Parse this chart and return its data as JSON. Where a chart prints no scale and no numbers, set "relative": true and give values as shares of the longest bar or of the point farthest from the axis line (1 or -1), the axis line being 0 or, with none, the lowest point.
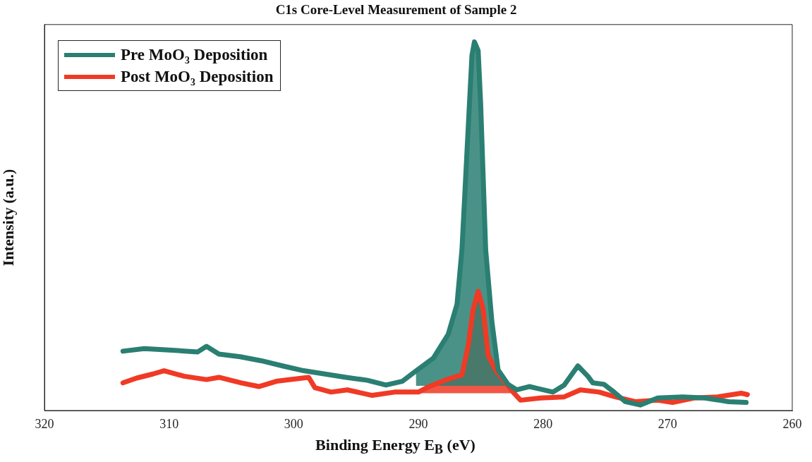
{
  "chart_data": {
    "type": "line",
    "title": "C1s Core-Level Measurement of Sample 2",
    "xlabel": "Binding Energy E$_{B}$ (eV)",
    "ylabel": "Intensity (a.u.)",
    "relative": true,
    "xlim": [
      320,
      260
    ],
    "xticks": [
      320,
      310,
      300,
      290,
      280,
      270,
      260
    ],
    "grid": false,
    "legend": "top left",
    "marker": "none",
    "line_style": "solid",
    "series": [
      {
        "name": "Pre MoO₃ Deposition",
        "color": "#2a7f72",
        "x": [
          313.7,
          312.0,
          310.0,
          307.7,
          307.0,
          306.0,
          304.3,
          302.6,
          300.9,
          299.2,
          297.5,
          295.8,
          294.1,
          292.6,
          291.3,
          290.2,
          288.8,
          287.6,
          286.9,
          286.5,
          286.1,
          285.7,
          285.5,
          285.2,
          285.0,
          284.6,
          284.1,
          283.6,
          282.8,
          282.1,
          281.1,
          279.2,
          278.3,
          277.2,
          276.4,
          276.0,
          275.1,
          274.3,
          273.4,
          272.2,
          270.8,
          268.8,
          267.0,
          265.1,
          263.7
        ],
        "values": [
          0.161,
          0.168,
          0.164,
          0.159,
          0.174,
          0.153,
          0.146,
          0.135,
          0.121,
          0.108,
          0.099,
          0.09,
          0.082,
          0.069,
          0.079,
          0.107,
          0.142,
          0.207,
          0.288,
          0.437,
          0.701,
          0.963,
          1,
          0.976,
          0.832,
          0.437,
          0.241,
          0.11,
          0.071,
          0.056,
          0.065,
          0.05,
          0.069,
          0.121,
          0.093,
          0.075,
          0.071,
          0.05,
          0.024,
          0.015,
          0.034,
          0.037,
          0.034,
          0.024,
          0.022
        ],
        "lower": [
          null,
          null,
          null,
          null,
          null,
          null,
          null,
          null,
          null,
          null,
          null,
          null,
          null,
          null,
          null,
          0.067,
          0.067,
          0.067,
          0.067,
          0.067,
          0.067,
          0.067,
          0.067,
          0.067,
          0.067,
          0.067,
          0.067,
          0.067,
          0.067,
          null,
          null,
          null,
          null,
          null,
          null,
          null,
          null,
          null,
          null,
          null,
          null,
          null,
          null,
          null,
          null
        ],
        "upper": [
          null,
          null,
          null,
          null,
          null,
          null,
          null,
          null,
          null,
          null,
          null,
          null,
          null,
          null,
          null,
          0.107,
          0.142,
          0.207,
          0.288,
          0.437,
          0.701,
          0.963,
          1,
          0.976,
          0.832,
          0.437,
          0.241,
          0.11,
          0.071,
          null,
          null,
          null,
          null,
          null,
          null,
          null,
          null,
          null,
          null,
          null,
          null,
          null,
          null,
          null,
          null
        ]
      },
      {
        "name": "Post MoO₃ Deposition",
        "color": "#f03a25",
        "x": [
          313.7,
          312.6,
          311.3,
          310.4,
          308.8,
          307.0,
          306.0,
          304.2,
          302.8,
          301.3,
          298.8,
          298.3,
          297.0,
          295.7,
          293.7,
          291.9,
          290.0,
          289.2,
          287.7,
          286.5,
          286.0,
          285.6,
          285.2,
          284.8,
          284.4,
          283.8,
          283.2,
          282.4,
          281.8,
          280.2,
          278.3,
          277.0,
          275.5,
          274.2,
          272.6,
          270.8,
          269.6,
          267.9,
          266.0,
          264.1,
          263.6
        ],
        "values": [
          0.075,
          0.088,
          0.099,
          0.108,
          0.093,
          0.084,
          0.09,
          0.075,
          0.065,
          0.08,
          0.09,
          0.062,
          0.05,
          0.056,
          0.041,
          0.05,
          0.05,
          0.064,
          0.084,
          0.097,
          0.176,
          0.275,
          0.323,
          0.275,
          0.15,
          0.11,
          0.084,
          0.05,
          0.028,
          0.034,
          0.037,
          0.056,
          0.05,
          0.037,
          0.024,
          0.028,
          0.022,
          0.034,
          0.037,
          0.047,
          0.043
        ],
        "lower": [
          null,
          null,
          null,
          null,
          null,
          null,
          null,
          null,
          null,
          null,
          null,
          null,
          null,
          null,
          null,
          null,
          0.047,
          0.047,
          0.047,
          0.047,
          0.047,
          0.047,
          0.047,
          0.047,
          0.047,
          0.047,
          0.047,
          0.047,
          null,
          null,
          null,
          null,
          null,
          null,
          null,
          null,
          null,
          null,
          null,
          null,
          null
        ],
        "upper": [
          null,
          null,
          null,
          null,
          null,
          null,
          null,
          null,
          null,
          null,
          null,
          null,
          null,
          null,
          null,
          null,
          0.05,
          0.064,
          0.084,
          0.097,
          0.176,
          0.275,
          0.323,
          0.275,
          0.15,
          0.11,
          0.084,
          0.05,
          null,
          null,
          null,
          null,
          null,
          null,
          null,
          null,
          null,
          null,
          null,
          null,
          null
        ]
      }
    ]
  }
}
